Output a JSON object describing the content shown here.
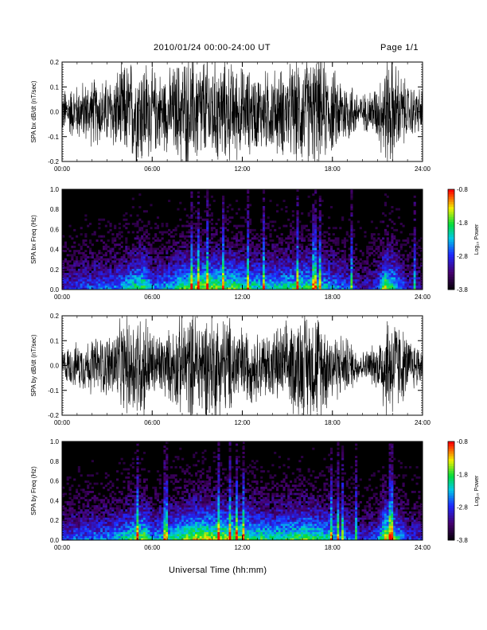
{
  "header": {
    "title": "2010/01/24  00:00-24:00 UT",
    "page": "Page 1/1"
  },
  "footer": {
    "xlabel": "Universal Time (hh:mm)"
  },
  "chart_data": [
    {
      "type": "line",
      "ylabel": "SPA bx dB/dt (nT/sec)",
      "xlim": [
        0,
        24
      ],
      "ylim": [
        -0.2,
        0.2
      ],
      "xticks": [
        "00:00",
        "06:00",
        "12:00",
        "18:00",
        "24:00"
      ],
      "yticks": [
        "-0.2",
        "-0.1",
        "0.0",
        "0.1",
        "0.2"
      ],
      "envelope": {
        "x": [
          0,
          1,
          2,
          3,
          4,
          5,
          5.5,
          6,
          7,
          8,
          9,
          10,
          11,
          12,
          13,
          14,
          15,
          16,
          17,
          18,
          19,
          20,
          21,
          21.5,
          22,
          23,
          24
        ],
        "amplitude": [
          0.08,
          0.1,
          0.12,
          0.12,
          0.17,
          0.2,
          0.2,
          0.15,
          0.14,
          0.2,
          0.2,
          0.2,
          0.18,
          0.16,
          0.14,
          0.15,
          0.16,
          0.2,
          0.2,
          0.15,
          0.12,
          0.06,
          0.1,
          0.2,
          0.2,
          0.1,
          0.08
        ]
      }
    },
    {
      "type": "heatmap",
      "ylabel": "SPA bx Freq (Hz)",
      "xlim": [
        0,
        24
      ],
      "ylim": [
        0.0,
        1.0
      ],
      "xticks": [
        "00:00",
        "06:00",
        "12:00",
        "18:00",
        "24:00"
      ],
      "yticks": [
        "0.0",
        "0.2",
        "0.4",
        "0.6",
        "0.8",
        "1.0"
      ],
      "colorbar": {
        "label": "Log₁₀ Power",
        "range": [
          -3.8,
          -0.8
        ],
        "ticks": [
          "-0.8",
          "-1.8",
          "-2.8",
          "-3.8"
        ]
      },
      "intensity": {
        "x": [
          0,
          1,
          2,
          3,
          4,
          5,
          5.5,
          6,
          7,
          8,
          9,
          10,
          11,
          12,
          13,
          14,
          15,
          16,
          17,
          18,
          19,
          20,
          21,
          21.5,
          22,
          23,
          24
        ],
        "level": [
          0.35,
          0.4,
          0.45,
          0.45,
          0.55,
          0.7,
          0.75,
          0.5,
          0.55,
          0.7,
          0.8,
          0.8,
          0.75,
          0.7,
          0.65,
          0.6,
          0.65,
          0.7,
          0.65,
          0.55,
          0.45,
          0.3,
          0.4,
          0.85,
          0.7,
          0.35,
          0.3
        ]
      }
    },
    {
      "type": "line",
      "ylabel": "SPA by dB/dt (nT/sec)",
      "xlim": [
        0,
        24
      ],
      "ylim": [
        -0.2,
        0.2
      ],
      "xticks": [
        "00:00",
        "06:00",
        "12:00",
        "18:00",
        "24:00"
      ],
      "yticks": [
        "-0.2",
        "-0.1",
        "0.0",
        "0.1",
        "0.2"
      ],
      "envelope": {
        "x": [
          0,
          1,
          2,
          3,
          4,
          5,
          5.5,
          6,
          7,
          8,
          9,
          10,
          11,
          12,
          13,
          14,
          15,
          16,
          17,
          18,
          19,
          20,
          21,
          21.5,
          22,
          23,
          24
        ],
        "amplitude": [
          0.06,
          0.08,
          0.1,
          0.11,
          0.16,
          0.2,
          0.2,
          0.12,
          0.12,
          0.18,
          0.2,
          0.2,
          0.18,
          0.14,
          0.12,
          0.13,
          0.15,
          0.2,
          0.2,
          0.13,
          0.1,
          0.05,
          0.08,
          0.2,
          0.2,
          0.1,
          0.07
        ]
      }
    },
    {
      "type": "heatmap",
      "ylabel": "SPA by Freq (Hz)",
      "xlim": [
        0,
        24
      ],
      "ylim": [
        0.0,
        1.0
      ],
      "xticks": [
        "00:00",
        "06:00",
        "12:00",
        "18:00",
        "24:00"
      ],
      "yticks": [
        "0.0",
        "0.2",
        "0.4",
        "0.6",
        "0.8",
        "1.0"
      ],
      "colorbar": {
        "label": "Log₁₀ Power",
        "range": [
          -3.8,
          -0.8
        ],
        "ticks": [
          "-0.8",
          "-1.8",
          "-2.8",
          "-3.8"
        ]
      },
      "intensity": {
        "x": [
          0,
          1,
          2,
          3,
          4,
          5,
          5.5,
          6,
          7,
          8,
          9,
          10,
          11,
          12,
          13,
          14,
          15,
          16,
          17,
          18,
          19,
          20,
          21,
          21.5,
          22,
          23,
          24
        ],
        "level": [
          0.4,
          0.45,
          0.5,
          0.5,
          0.6,
          0.75,
          0.8,
          0.55,
          0.6,
          0.75,
          0.85,
          0.85,
          0.8,
          0.75,
          0.7,
          0.65,
          0.7,
          0.75,
          0.7,
          0.6,
          0.5,
          0.35,
          0.45,
          0.9,
          0.75,
          0.4,
          0.35
        ]
      }
    }
  ]
}
